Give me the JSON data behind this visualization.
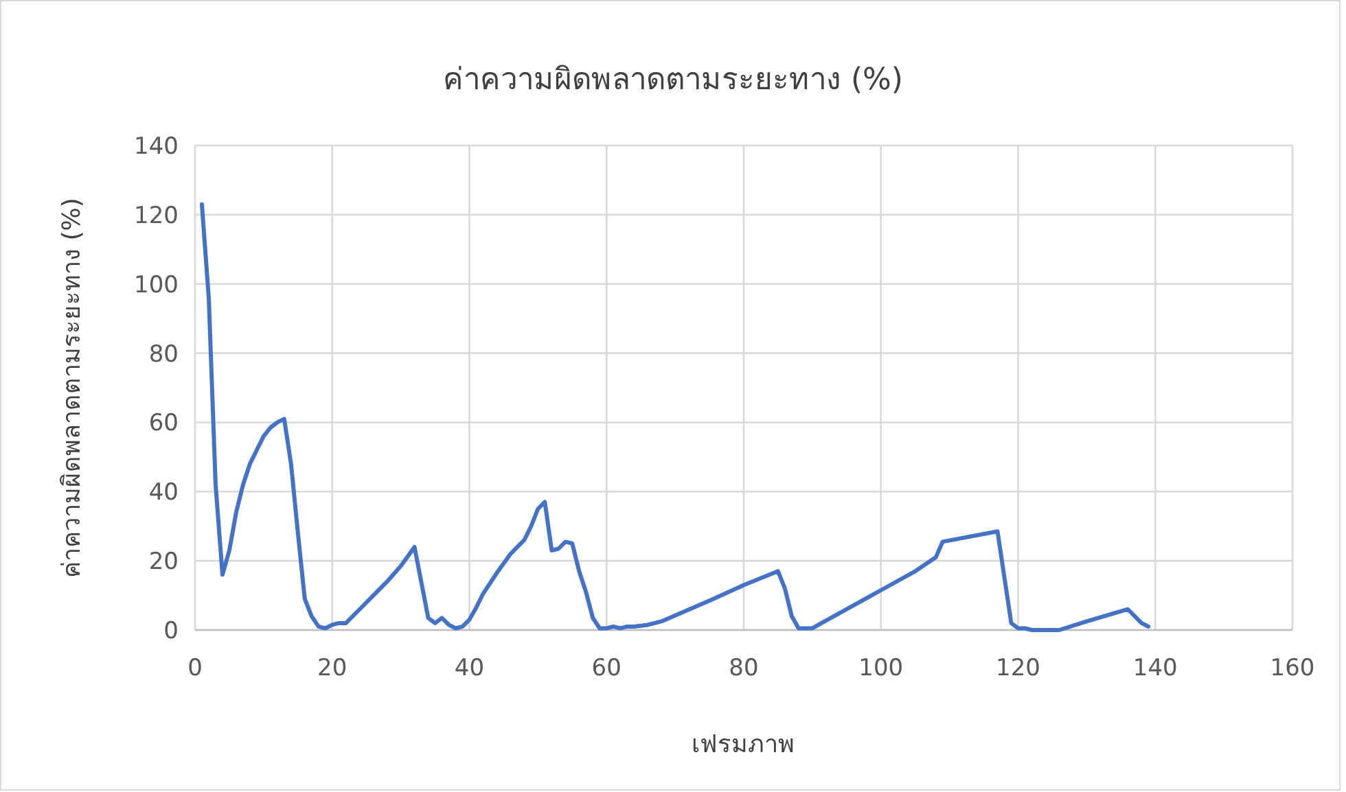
{
  "chart_data": {
    "type": "line",
    "title": "ค่าความผิดพลาดตามระยะทาง (%)",
    "xlabel": "เฟรมภาพ",
    "ylabel": "ค่าความผิดพลาดตามระยะทาง (%)",
    "xlim": [
      0,
      160
    ],
    "xticks": [
      0,
      20,
      40,
      60,
      80,
      100,
      120,
      140,
      160
    ],
    "ylim": [
      0,
      140
    ],
    "yticks": [
      0,
      20,
      40,
      60,
      80,
      100,
      120,
      140
    ],
    "grid": true,
    "series": [
      {
        "color": "#4472c4",
        "x": [
          1,
          2,
          3,
          4,
          5,
          6,
          7,
          8,
          9,
          10,
          11,
          12,
          13,
          14,
          15,
          16,
          17,
          18,
          19,
          20,
          21,
          22,
          24,
          26,
          28,
          30,
          32,
          34,
          35,
          36,
          37,
          38,
          39,
          40,
          41,
          42,
          44,
          46,
          47,
          48,
          49,
          50,
          51,
          52,
          53,
          54,
          55,
          56,
          57,
          58,
          59,
          60,
          61,
          62,
          63,
          64,
          66,
          68,
          75,
          80,
          85,
          86,
          87,
          88,
          90,
          95,
          100,
          105,
          108,
          109,
          117,
          119,
          120,
          121,
          122,
          126,
          130,
          136,
          138,
          139
        ],
        "values": [
          123,
          96,
          42,
          16,
          23,
          34,
          42,
          48,
          52,
          56,
          58.5,
          60,
          61,
          48,
          28,
          9,
          4,
          1,
          0.5,
          1.5,
          2,
          2,
          6,
          10,
          14,
          18.5,
          24,
          3.5,
          2,
          3.5,
          1.5,
          0.5,
          1,
          3,
          6.5,
          10.5,
          16.5,
          22,
          24,
          26,
          30,
          35,
          37,
          23,
          23.5,
          25.5,
          25,
          17,
          11,
          3.5,
          0.5,
          0.5,
          1,
          0.5,
          1,
          1,
          1.5,
          2.5,
          8.5,
          13,
          17,
          12,
          4,
          0.5,
          0.5,
          6,
          11.5,
          17,
          21,
          25.5,
          28.5,
          2,
          0.5,
          0.5,
          0,
          0,
          2.5,
          6,
          2,
          1
        ]
      }
    ]
  }
}
